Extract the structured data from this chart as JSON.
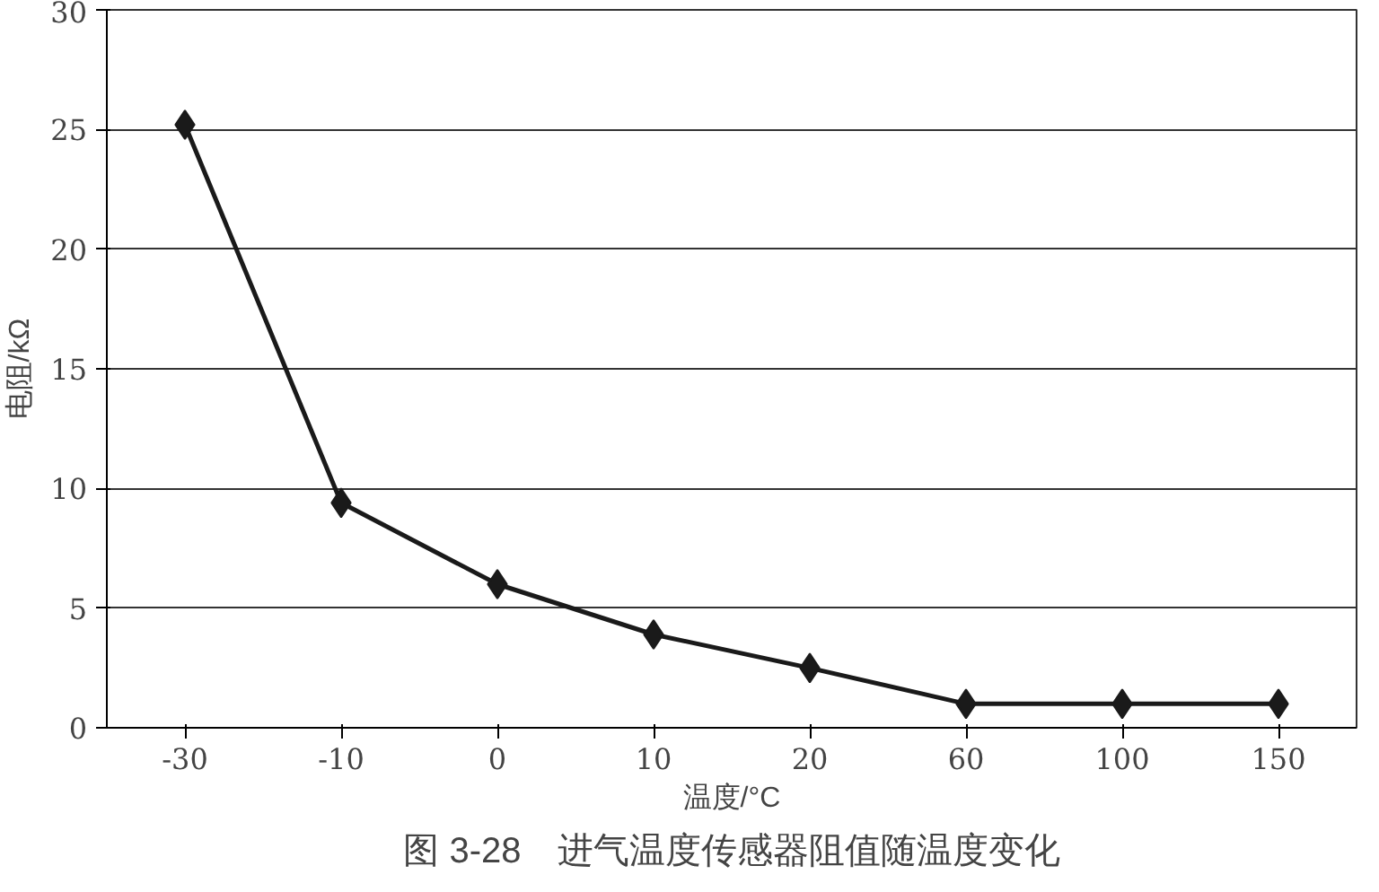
{
  "chart_data": {
    "type": "line",
    "categories": [
      "-30",
      "-10",
      "0",
      "10",
      "20",
      "60",
      "100",
      "150"
    ],
    "series": [
      {
        "color": "#1a1a1a",
        "values": [
          25.2,
          9.4,
          6.0,
          3.9,
          2.5,
          1.0,
          1.0,
          1.0
        ]
      }
    ],
    "ylim": [
      0,
      30
    ],
    "yticks": [
      0,
      5,
      10,
      15,
      20,
      25,
      30
    ],
    "grid": "y",
    "marker": "diamond",
    "line_style": "solid",
    "xlabel": "温度/°C",
    "ylabel": "电阻/kΩ",
    "annotations": [
      "图 3-28　进气温度传感器阻值随温度变化"
    ]
  }
}
